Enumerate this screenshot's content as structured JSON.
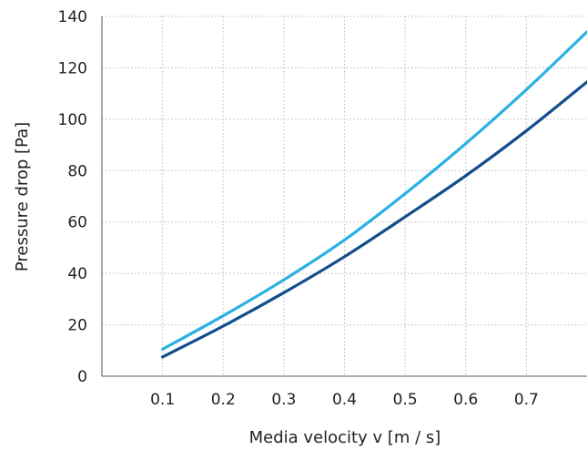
{
  "chart_data": {
    "type": "line",
    "xlabel": "Media velocity v [m / s]",
    "ylabel": "Pressure drop [Pa]",
    "xlim": [
      0,
      0.8
    ],
    "ylim": [
      0,
      140
    ],
    "x_ticks": [
      0.1,
      0.2,
      0.3,
      0.4,
      0.5,
      0.6,
      0.7
    ],
    "x_tick_labels": [
      "0.1",
      "0.2",
      "0.3",
      "0.4",
      "0.5",
      "0.6",
      "0.7"
    ],
    "y_ticks": [
      0,
      20,
      40,
      60,
      80,
      100,
      120,
      140
    ],
    "y_tick_labels": [
      "0",
      "20",
      "40",
      "60",
      "80",
      "100",
      "120",
      "140"
    ],
    "grid": true,
    "legend": "none",
    "series": [
      {
        "color": "#2bb0e3",
        "x": [
          0.1,
          0.2,
          0.3,
          0.4,
          0.5,
          0.6,
          0.7,
          0.8
        ],
        "values": [
          10.5,
          23.5,
          37.5,
          53,
          71,
          90.5,
          111.5,
          134
        ]
      },
      {
        "color": "#124e8c",
        "x": [
          0.1,
          0.2,
          0.3,
          0.4,
          0.5,
          0.6,
          0.7,
          0.8
        ],
        "values": [
          7.5,
          19.5,
          32.5,
          46.5,
          62,
          78,
          95.5,
          114.5
        ]
      }
    ]
  }
}
